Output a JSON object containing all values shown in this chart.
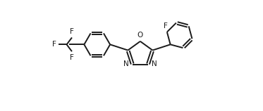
{
  "bg_color": "#ffffff",
  "line_color": "#1a1a1a",
  "line_width": 1.4,
  "font_size": 7.5,
  "figsize": [
    3.73,
    1.58
  ],
  "dpi": 100,
  "xlim": [
    0,
    10.5
  ],
  "ylim": [
    0.2,
    4.4
  ]
}
